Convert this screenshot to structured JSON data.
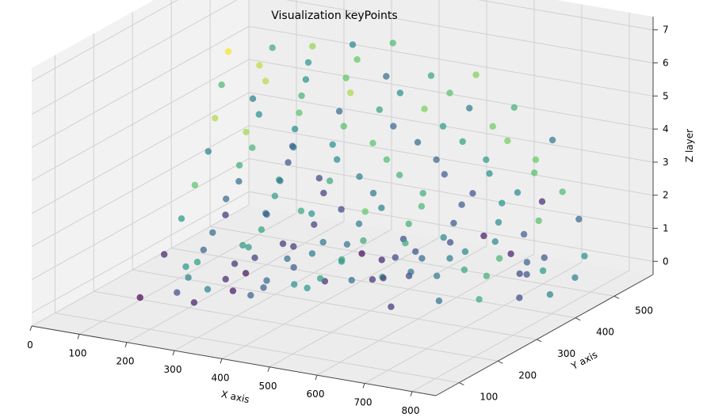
{
  "chart_data": {
    "type": "scatter",
    "projection": "3d",
    "title": "Visualization keyPoints",
    "xlabel": "X axis",
    "ylabel": "Y axis",
    "zlabel": "Z layer",
    "xlim": [
      0,
      850
    ],
    "ylim": [
      40,
      600
    ],
    "zlim": [
      -0.4,
      7.4
    ],
    "xticks": [
      "0",
      "100",
      "200",
      "300",
      "400",
      "500",
      "600",
      "700",
      "800"
    ],
    "yticks": [
      "100",
      "200",
      "300",
      "400",
      "500"
    ],
    "zticks": [
      "0",
      "1",
      "2",
      "3",
      "4",
      "5",
      "6",
      "7"
    ],
    "grid": true,
    "colormap": "viridis",
    "marker_alpha": 0.7,
    "points": [
      [
        130,
        160,
        0
      ],
      [
        175,
        200,
        0
      ],
      [
        215,
        230,
        0
      ],
      [
        260,
        240,
        0
      ],
      [
        300,
        270,
        0
      ],
      [
        340,
        300,
        0
      ],
      [
        380,
        330,
        0
      ],
      [
        420,
        350,
        0
      ],
      [
        460,
        380,
        0
      ],
      [
        500,
        400,
        0
      ],
      [
        150,
        260,
        0
      ],
      [
        230,
        310,
        0
      ],
      [
        290,
        360,
        0
      ],
      [
        350,
        410,
        0
      ],
      [
        410,
        440,
        0
      ],
      [
        470,
        470,
        0
      ],
      [
        120,
        320,
        0
      ],
      [
        200,
        370,
        0
      ],
      [
        280,
        420,
        0
      ],
      [
        360,
        450,
        0
      ],
      [
        440,
        490,
        0
      ],
      [
        520,
        520,
        0
      ],
      [
        600,
        540,
        0
      ],
      [
        650,
        520,
        0
      ],
      [
        700,
        500,
        0
      ],
      [
        560,
        280,
        0
      ],
      [
        620,
        330,
        0
      ],
      [
        680,
        360,
        0
      ],
      [
        740,
        390,
        0
      ],
      [
        780,
        420,
        0
      ],
      [
        260,
        140,
        0.3
      ],
      [
        330,
        200,
        0.3
      ],
      [
        400,
        260,
        0.3
      ],
      [
        480,
        330,
        0.3
      ],
      [
        520,
        380,
        0.3
      ],
      [
        600,
        420,
        0.3
      ],
      [
        700,
        440,
        0.3
      ],
      [
        800,
        460,
        0.3
      ],
      [
        140,
        210,
        1
      ],
      [
        190,
        250,
        1
      ],
      [
        240,
        290,
        1
      ],
      [
        300,
        320,
        1
      ],
      [
        360,
        350,
        1
      ],
      [
        420,
        380,
        1
      ],
      [
        480,
        410,
        1
      ],
      [
        540,
        440,
        1
      ],
      [
        600,
        470,
        1
      ],
      [
        660,
        500,
        1
      ],
      [
        210,
        180,
        1
      ],
      [
        280,
        220,
        1
      ],
      [
        350,
        270,
        1
      ],
      [
        440,
        300,
        1
      ],
      [
        520,
        340,
        1
      ],
      [
        610,
        370,
        1
      ],
      [
        690,
        400,
        1
      ],
      [
        760,
        430,
        1
      ],
      [
        820,
        460,
        1
      ],
      [
        310,
        160,
        1
      ],
      [
        380,
        180,
        1
      ],
      [
        460,
        220,
        1
      ],
      [
        560,
        260,
        1
      ],
      [
        640,
        300,
        1
      ],
      [
        720,
        330,
        1
      ],
      [
        780,
        360,
        1
      ],
      [
        160,
        230,
        2
      ],
      [
        220,
        270,
        2
      ],
      [
        280,
        300,
        2
      ],
      [
        330,
        330,
        2
      ],
      [
        390,
        360,
        2
      ],
      [
        450,
        390,
        2
      ],
      [
        510,
        420,
        2
      ],
      [
        570,
        450,
        2
      ],
      [
        630,
        480,
        2
      ],
      [
        690,
        510,
        2
      ],
      [
        250,
        200,
        2
      ],
      [
        320,
        240,
        2
      ],
      [
        390,
        290,
        2
      ],
      [
        460,
        320,
        2
      ],
      [
        540,
        350,
        2
      ],
      [
        610,
        380,
        2
      ],
      [
        680,
        410,
        2
      ],
      [
        740,
        440,
        2
      ],
      [
        800,
        470,
        2
      ],
      [
        350,
        170,
        2
      ],
      [
        420,
        200,
        2
      ],
      [
        500,
        240,
        2
      ],
      [
        590,
        280,
        2
      ],
      [
        660,
        310,
        2
      ],
      [
        730,
        340,
        2
      ],
      [
        180,
        240,
        3
      ],
      [
        240,
        280,
        3
      ],
      [
        300,
        310,
        3
      ],
      [
        360,
        340,
        3
      ],
      [
        420,
        370,
        3
      ],
      [
        480,
        400,
        3
      ],
      [
        550,
        430,
        3
      ],
      [
        620,
        460,
        3
      ],
      [
        690,
        490,
        3
      ],
      [
        270,
        210,
        3
      ],
      [
        340,
        250,
        3
      ],
      [
        410,
        290,
        3
      ],
      [
        490,
        320,
        3
      ],
      [
        570,
        350,
        3
      ],
      [
        650,
        380,
        3
      ],
      [
        720,
        410,
        3
      ],
      [
        790,
        440,
        3
      ],
      [
        380,
        180,
        3
      ],
      [
        450,
        210,
        3
      ],
      [
        530,
        250,
        3
      ],
      [
        200,
        250,
        4
      ],
      [
        260,
        290,
        4
      ],
      [
        320,
        320,
        4
      ],
      [
        380,
        350,
        4
      ],
      [
        440,
        380,
        4
      ],
      [
        510,
        410,
        4
      ],
      [
        580,
        440,
        4
      ],
      [
        650,
        470,
        4
      ],
      [
        720,
        500,
        4
      ],
      [
        290,
        220,
        4
      ],
      [
        360,
        260,
        4
      ],
      [
        430,
        300,
        4
      ],
      [
        510,
        330,
        4
      ],
      [
        590,
        360,
        4
      ],
      [
        670,
        390,
        4
      ],
      [
        750,
        420,
        4
      ],
      [
        400,
        190,
        4
      ],
      [
        480,
        220,
        4
      ],
      [
        210,
        255,
        5
      ],
      [
        270,
        295,
        5
      ],
      [
        330,
        325,
        5
      ],
      [
        390,
        355,
        5
      ],
      [
        450,
        385,
        5
      ],
      [
        520,
        415,
        5
      ],
      [
        590,
        445,
        5
      ],
      [
        660,
        475,
        5
      ],
      [
        300,
        225,
        5
      ],
      [
        370,
        265,
        5
      ],
      [
        440,
        305,
        5
      ],
      [
        520,
        335,
        5
      ],
      [
        600,
        365,
        5
      ],
      [
        680,
        395,
        5
      ],
      [
        420,
        200,
        5
      ],
      [
        220,
        260,
        6
      ],
      [
        280,
        300,
        6
      ],
      [
        340,
        330,
        6
      ],
      [
        400,
        360,
        6
      ],
      [
        460,
        390,
        6
      ],
      [
        530,
        420,
        6
      ],
      [
        600,
        450,
        6
      ],
      [
        310,
        230,
        6
      ],
      [
        380,
        270,
        6
      ],
      [
        450,
        310,
        6
      ],
      [
        530,
        340,
        6
      ],
      [
        610,
        370,
        6
      ],
      [
        230,
        265,
        7
      ],
      [
        290,
        305,
        7
      ],
      [
        350,
        335,
        7
      ],
      [
        410,
        365,
        7
      ],
      [
        470,
        395,
        7
      ],
      [
        320,
        235,
        7
      ],
      [
        390,
        275,
        7
      ],
      [
        460,
        315,
        7
      ]
    ]
  }
}
